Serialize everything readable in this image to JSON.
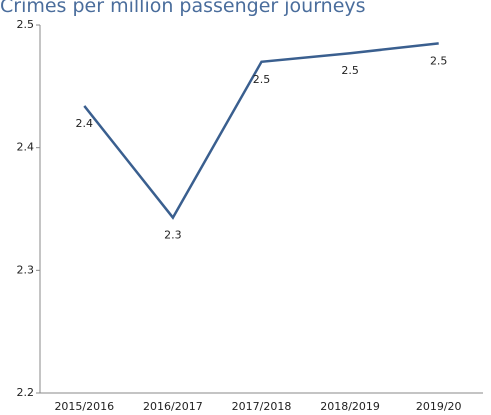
{
  "chart_data": {
    "type": "line",
    "title": "Crimes per million passenger journeys",
    "categories": [
      "2015/2016",
      "2016/2017",
      "2017/2018",
      "2018/2019",
      "2019/20"
    ],
    "series": [
      {
        "color": "#3a5f8f",
        "values": [
          2.434,
          2.343,
          2.47,
          2.477,
          2.485
        ],
        "value_labels": [
          "2.4",
          "2.3",
          "2.5",
          "2.5",
          "2.5"
        ]
      }
    ],
    "ylim": [
      2.2,
      2.5
    ],
    "yticks": [
      2.2,
      2.3,
      2.4,
      2.5
    ],
    "grid": false
  }
}
